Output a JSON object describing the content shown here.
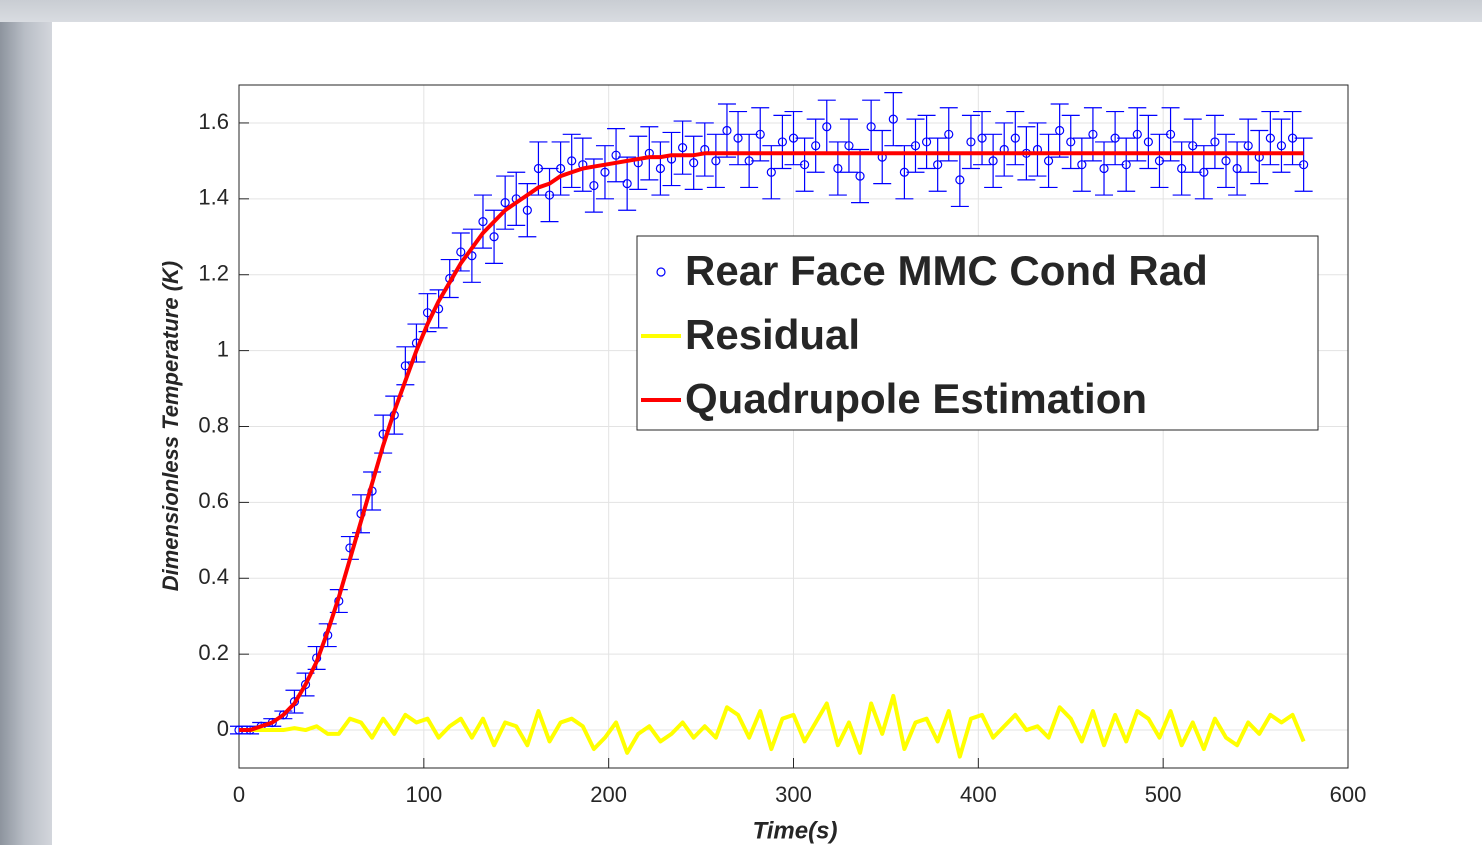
{
  "chart_data": {
    "type": "errorbar",
    "xlabel": "Time(s)",
    "ylabel": "Dimensionless Temperature (K)",
    "xlim": [
      0,
      600
    ],
    "xticks": [
      0,
      100,
      200,
      300,
      400,
      500,
      600
    ],
    "ylim": [
      -0.1,
      1.7
    ],
    "yticks": [
      0,
      0.2,
      0.4,
      0.6,
      0.8,
      1,
      1.2,
      1.4,
      1.6
    ],
    "grid": true,
    "legend": "northeast",
    "x": [
      0,
      6,
      12,
      18,
      24,
      30,
      36,
      42,
      48,
      54,
      60,
      66,
      72,
      78,
      84,
      90,
      96,
      102,
      108,
      114,
      120,
      126,
      132,
      138,
      144,
      150,
      156,
      162,
      168,
      174,
      180,
      186,
      192,
      198,
      204,
      210,
      216,
      222,
      228,
      234,
      240,
      246,
      252,
      258,
      264,
      270,
      276,
      282,
      288,
      294,
      300,
      306,
      312,
      318,
      324,
      330,
      336,
      342,
      348,
      354,
      360,
      366,
      372,
      378,
      384,
      390,
      396,
      402,
      408,
      414,
      420,
      426,
      432,
      438,
      444,
      450,
      456,
      462,
      468,
      474,
      480,
      486,
      492,
      498,
      504,
      510,
      516,
      522,
      528,
      534,
      540,
      546,
      552,
      558,
      564,
      570,
      576
    ],
    "series": [
      {
        "name": "Rear Face MMC Cond Rad",
        "color": "#0000ff",
        "mode": "markers",
        "values": [
          0,
          0,
          0.01,
          0.02,
          0.04,
          0.075,
          0.12,
          0.19,
          0.25,
          0.34,
          0.48,
          0.57,
          0.63,
          0.78,
          0.83,
          0.96,
          1.02,
          1.1,
          1.11,
          1.19,
          1.26,
          1.25,
          1.34,
          1.3,
          1.39,
          1.4,
          1.37,
          1.48,
          1.41,
          1.48,
          1.5,
          1.49,
          1.435,
          1.47,
          1.515,
          1.44,
          1.495,
          1.52,
          1.48,
          1.505,
          1.535,
          1.495,
          1.53,
          1.5,
          1.58,
          1.56,
          1.5,
          1.57,
          1.47,
          1.55,
          1.56,
          1.49,
          1.54,
          1.59,
          1.48,
          1.54,
          1.46,
          1.59,
          1.51,
          1.61,
          1.47,
          1.54,
          1.55,
          1.49,
          1.57,
          1.45,
          1.55,
          1.56,
          1.5,
          1.53,
          1.56,
          1.52,
          1.53,
          1.5,
          1.58,
          1.55,
          1.49,
          1.57,
          1.48,
          1.56,
          1.49,
          1.57,
          1.55,
          1.5,
          1.57,
          1.48,
          1.54,
          1.47,
          1.55,
          1.5,
          1.48,
          1.54,
          1.51,
          1.56,
          1.54,
          1.56,
          1.49
        ],
        "errors": [
          0.01,
          0.01,
          0.01,
          0.01,
          0.01,
          0.03,
          0.03,
          0.03,
          0.03,
          0.03,
          0.03,
          0.05,
          0.05,
          0.05,
          0.05,
          0.05,
          0.05,
          0.05,
          0.05,
          0.05,
          0.05,
          0.07,
          0.07,
          0.07,
          0.07,
          0.07,
          0.07,
          0.07,
          0.07,
          0.07,
          0.07,
          0.07,
          0.07,
          0.07,
          0.07,
          0.07,
          0.07,
          0.07,
          0.07,
          0.07,
          0.07,
          0.07,
          0.07,
          0.07,
          0.07,
          0.07,
          0.07,
          0.07,
          0.07,
          0.07,
          0.07,
          0.07,
          0.07,
          0.07,
          0.07,
          0.07,
          0.07,
          0.07,
          0.07,
          0.07,
          0.07,
          0.07,
          0.07,
          0.07,
          0.07,
          0.07,
          0.07,
          0.07,
          0.07,
          0.07,
          0.07,
          0.07,
          0.07,
          0.07,
          0.07,
          0.07,
          0.07,
          0.07,
          0.07,
          0.07,
          0.07,
          0.07,
          0.07,
          0.07,
          0.07,
          0.07,
          0.07,
          0.07,
          0.07,
          0.07,
          0.07,
          0.07,
          0.07,
          0.07,
          0.07,
          0.07,
          0.07
        ]
      },
      {
        "name": "Residual",
        "color": "#ffff00",
        "mode": "line",
        "values": [
          0,
          0,
          0,
          0,
          0,
          0.005,
          0,
          0.01,
          -0.01,
          -0.01,
          0.03,
          0.02,
          -0.02,
          0.03,
          -0.01,
          0.04,
          0.02,
          0.03,
          -0.02,
          0.01,
          0.03,
          -0.02,
          0.03,
          -0.04,
          0.02,
          0.01,
          -0.04,
          0.05,
          -0.03,
          0.02,
          0.03,
          0.01,
          -0.05,
          -0.02,
          0.02,
          -0.06,
          -0.01,
          0.01,
          -0.03,
          -0.01,
          0.02,
          -0.02,
          0.01,
          -0.02,
          0.06,
          0.04,
          -0.02,
          0.05,
          -0.05,
          0.03,
          0.04,
          -0.03,
          0.02,
          0.07,
          -0.04,
          0.02,
          -0.06,
          0.07,
          -0.01,
          0.09,
          -0.05,
          0.02,
          0.03,
          -0.03,
          0.05,
          -0.07,
          0.03,
          0.04,
          -0.02,
          0.01,
          0.04,
          0,
          0.01,
          -0.02,
          0.06,
          0.03,
          -0.03,
          0.05,
          -0.04,
          0.04,
          -0.03,
          0.05,
          0.03,
          -0.02,
          0.05,
          -0.04,
          0.02,
          -0.05,
          0.03,
          -0.02,
          -0.04,
          0.02,
          -0.01,
          0.04,
          0.02,
          0.04,
          -0.03
        ]
      },
      {
        "name": "Quadrupole Estimation",
        "color": "#ff0000",
        "mode": "line",
        "values": [
          0,
          0,
          0.01,
          0.02,
          0.04,
          0.07,
          0.12,
          0.18,
          0.26,
          0.35,
          0.45,
          0.55,
          0.65,
          0.75,
          0.84,
          0.92,
          1,
          1.07,
          1.13,
          1.18,
          1.23,
          1.27,
          1.31,
          1.34,
          1.37,
          1.39,
          1.41,
          1.43,
          1.44,
          1.46,
          1.47,
          1.48,
          1.485,
          1.49,
          1.495,
          1.5,
          1.505,
          1.51,
          1.51,
          1.515,
          1.515,
          1.515,
          1.52,
          1.52,
          1.52,
          1.52,
          1.52,
          1.52,
          1.52,
          1.52,
          1.52,
          1.52,
          1.52,
          1.52,
          1.52,
          1.52,
          1.52,
          1.52,
          1.52,
          1.52,
          1.52,
          1.52,
          1.52,
          1.52,
          1.52,
          1.52,
          1.52,
          1.52,
          1.52,
          1.52,
          1.52,
          1.52,
          1.52,
          1.52,
          1.52,
          1.52,
          1.52,
          1.52,
          1.52,
          1.52,
          1.52,
          1.52,
          1.52,
          1.52,
          1.52,
          1.52,
          1.52,
          1.52,
          1.52,
          1.52,
          1.52,
          1.52,
          1.52,
          1.52,
          1.52,
          1.52,
          1.52
        ]
      }
    ]
  }
}
